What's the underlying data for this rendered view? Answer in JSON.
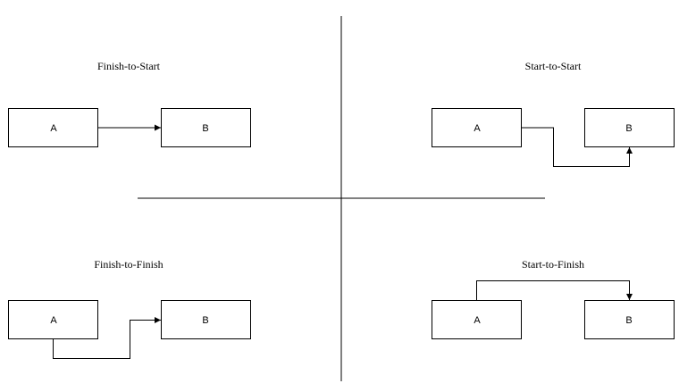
{
  "quadrants": {
    "finish_to_start": {
      "title": "Finish-to-Start",
      "node_a": "A",
      "node_b": "B"
    },
    "start_to_start": {
      "title": "Start-to-Start",
      "node_a": "A",
      "node_b": "B"
    },
    "finish_to_finish": {
      "title": "Finish-to-Finish",
      "node_a": "A",
      "node_b": "B"
    },
    "start_to_finish": {
      "title": "Start-to-Finish",
      "node_a": "A",
      "node_b": "B"
    }
  }
}
